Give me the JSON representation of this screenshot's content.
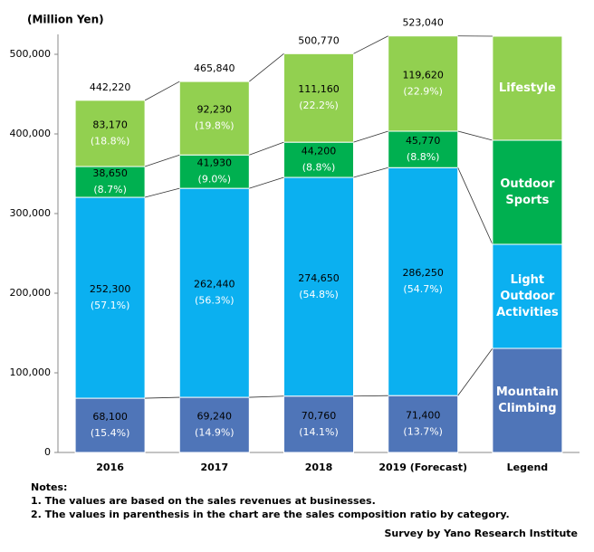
{
  "chart_data": {
    "type": "stacked-bar",
    "y_label": "(Million Yen)",
    "categories": [
      "2016",
      "2017",
      "2018",
      "2019 (Forecast)"
    ],
    "legend_title": "Legend",
    "ylim": [
      0,
      525000
    ],
    "yticks": [
      0,
      {
        "value": 100000,
        "label": "100,000"
      },
      {
        "value": 200000,
        "label": "200,000"
      },
      {
        "value": 300000,
        "label": "300,000"
      },
      {
        "value": 400000,
        "label": "400,000"
      },
      {
        "value": 500000,
        "label": "500,000"
      }
    ],
    "series": [
      {
        "name": "Mountain Climbing",
        "color": "#4f75b8",
        "values": [
          68100,
          69240,
          70760,
          71400
        ],
        "value_labels": [
          "68,100",
          "69,240",
          "70,760",
          "71,400"
        ],
        "share_labels": [
          "(15.4%)",
          "(14.9%)",
          "(14.1%)",
          "(13.7%)"
        ]
      },
      {
        "name": "Light Outdoor Activities",
        "color": "#0bb0f0",
        "values": [
          252300,
          262440,
          274650,
          286250
        ],
        "value_labels": [
          "252,300",
          "262,440",
          "274,650",
          "286,250"
        ],
        "share_labels": [
          "(57.1%)",
          "(56.3%)",
          "(54.8%)",
          "(54.7%)"
        ]
      },
      {
        "name": "Outdoor Sports",
        "color": "#00b050",
        "values": [
          38650,
          41930,
          44200,
          45770
        ],
        "value_labels": [
          "38,650",
          "41,930",
          "44,200",
          "45,770"
        ],
        "share_labels": [
          "(8.7%)",
          "(9.0%)",
          "(8.8%)",
          "(8.8%)"
        ]
      },
      {
        "name": "Lifestyle",
        "color": "#92d050",
        "values": [
          83170,
          92230,
          111160,
          119620
        ],
        "value_labels": [
          "83,170",
          "92,230",
          "111,160",
          "119,620"
        ],
        "share_labels": [
          "(18.8%)",
          "(19.8%)",
          "(22.2%)",
          "(22.9%)"
        ]
      }
    ],
    "totals": [
      442220,
      465840,
      500770,
      523040
    ],
    "total_labels": [
      "442,220",
      "465,840",
      "500,770",
      "523,040"
    ]
  },
  "notes": {
    "title": "Notes:",
    "items": [
      "1.  The values are based on the sales revenues at businesses.",
      "2.  The values in parenthesis in the chart are the sales composition ratio by category."
    ]
  },
  "source": "Survey by Yano Research Institute"
}
